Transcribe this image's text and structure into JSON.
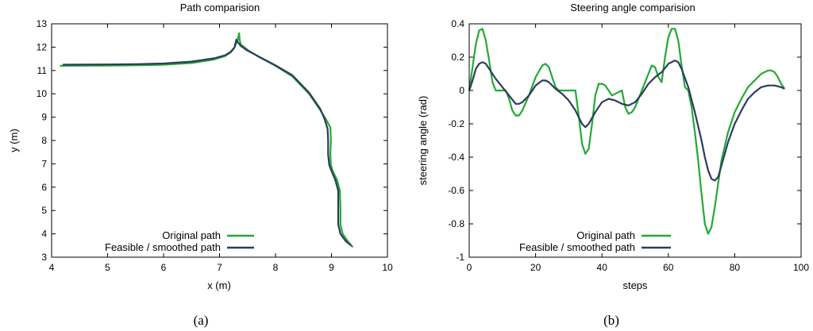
{
  "chart_data": [
    {
      "type": "line",
      "title": "Path comparision",
      "xlabel": "x (m)",
      "ylabel": "y (m)",
      "xlim": [
        4,
        10
      ],
      "ylim": [
        3,
        13
      ],
      "xticks": [
        "4",
        "5",
        "6",
        "7",
        "8",
        "9",
        "10"
      ],
      "yticks": [
        "3",
        "4",
        "5",
        "6",
        "7",
        "8",
        "9",
        "10",
        "11",
        "12",
        "13"
      ],
      "caption": "(a)",
      "legend_position": "bottom-right",
      "series": [
        {
          "name": "Original path",
          "color": "#22aa33",
          "points": [
            [
              4.15,
              11.2
            ],
            [
              5.0,
              11.21
            ],
            [
              5.5,
              11.22
            ],
            [
              6.0,
              11.25
            ],
            [
              6.5,
              11.32
            ],
            [
              6.9,
              11.47
            ],
            [
              7.1,
              11.62
            ],
            [
              7.2,
              11.78
            ],
            [
              7.26,
              11.95
            ],
            [
              7.32,
              12.28
            ],
            [
              7.35,
              12.6
            ],
            [
              7.36,
              12.3
            ],
            [
              7.38,
              12.12
            ],
            [
              7.5,
              11.88
            ],
            [
              7.7,
              11.58
            ],
            [
              8.0,
              11.2
            ],
            [
              8.3,
              10.75
            ],
            [
              8.6,
              10.0
            ],
            [
              8.8,
              9.3
            ],
            [
              8.9,
              8.92
            ],
            [
              8.98,
              8.55
            ],
            [
              8.99,
              8.0
            ],
            [
              8.98,
              7.4
            ],
            [
              8.99,
              6.95
            ],
            [
              9.02,
              6.7
            ],
            [
              9.1,
              6.3
            ],
            [
              9.15,
              5.85
            ],
            [
              9.16,
              5.1
            ],
            [
              9.16,
              4.4
            ],
            [
              9.2,
              4.0
            ],
            [
              9.3,
              3.65
            ],
            [
              9.38,
              3.43
            ]
          ]
        },
        {
          "name": "Feasible / smoothed path",
          "color": "#2d3b5e",
          "points": [
            [
              4.2,
              11.25
            ],
            [
              5.0,
              11.26
            ],
            [
              5.5,
              11.27
            ],
            [
              6.0,
              11.3
            ],
            [
              6.5,
              11.38
            ],
            [
              6.9,
              11.52
            ],
            [
              7.1,
              11.65
            ],
            [
              7.2,
              11.8
            ],
            [
              7.27,
              12.0
            ],
            [
              7.3,
              12.32
            ],
            [
              7.33,
              12.2
            ],
            [
              7.38,
              12.05
            ],
            [
              7.5,
              11.85
            ],
            [
              7.7,
              11.6
            ],
            [
              8.0,
              11.22
            ],
            [
              8.3,
              10.8
            ],
            [
              8.6,
              10.05
            ],
            [
              8.8,
              9.35
            ],
            [
              8.88,
              8.9
            ],
            [
              8.93,
              8.5
            ],
            [
              8.94,
              8.0
            ],
            [
              8.94,
              7.4
            ],
            [
              8.96,
              6.95
            ],
            [
              9.0,
              6.7
            ],
            [
              9.07,
              6.3
            ],
            [
              9.12,
              5.85
            ],
            [
              9.12,
              5.1
            ],
            [
              9.12,
              4.4
            ],
            [
              9.16,
              4.0
            ],
            [
              9.25,
              3.7
            ],
            [
              9.35,
              3.5
            ]
          ]
        }
      ]
    },
    {
      "type": "line",
      "title": "Steering angle comparision",
      "xlabel": "steps",
      "ylabel": "steering angle (rad)",
      "xlim": [
        0,
        100
      ],
      "ylim": [
        -1,
        0.4
      ],
      "xticks": [
        "0",
        "20",
        "40",
        "60",
        "80",
        "100"
      ],
      "yticks": [
        "-1",
        "-0.8",
        "-0.6",
        "-0.4",
        "-0.2",
        "0",
        "0.2",
        "0.4"
      ],
      "caption": "(b)",
      "legend_position": "bottom-right",
      "series": [
        {
          "name": "Original path",
          "color": "#22aa33",
          "points": [
            [
              0,
              0
            ],
            [
              2,
              0.28
            ],
            [
              3,
              0.36
            ],
            [
              4,
              0.37
            ],
            [
              5,
              0.3
            ],
            [
              6,
              0.18
            ],
            [
              7,
              0.05
            ],
            [
              8,
              0
            ],
            [
              10,
              0
            ],
            [
              11,
              0
            ],
            [
              12,
              -0.05
            ],
            [
              13,
              -0.12
            ],
            [
              14,
              -0.15
            ],
            [
              15,
              -0.15
            ],
            [
              16,
              -0.12
            ],
            [
              18,
              -0.03
            ],
            [
              20,
              0.08
            ],
            [
              22,
              0.15
            ],
            [
              23,
              0.16
            ],
            [
              24,
              0.14
            ],
            [
              26,
              0.02
            ],
            [
              27,
              0
            ],
            [
              30,
              0
            ],
            [
              32,
              0
            ],
            [
              33,
              -0.15
            ],
            [
              34,
              -0.32
            ],
            [
              35,
              -0.38
            ],
            [
              36,
              -0.35
            ],
            [
              37,
              -0.2
            ],
            [
              38,
              -0.03
            ],
            [
              39,
              0.04
            ],
            [
              40,
              0.04
            ],
            [
              41,
              0.03
            ],
            [
              42,
              0
            ],
            [
              43,
              -0.03
            ],
            [
              44,
              -0.02
            ],
            [
              46,
              0
            ],
            [
              47,
              -0.1
            ],
            [
              48,
              -0.14
            ],
            [
              49,
              -0.13
            ],
            [
              50,
              -0.1
            ],
            [
              52,
              0
            ],
            [
              54,
              0.1
            ],
            [
              55,
              0.15
            ],
            [
              56,
              0.14
            ],
            [
              57,
              0.08
            ],
            [
              58,
              0.05
            ],
            [
              59,
              0.2
            ],
            [
              60,
              0.32
            ],
            [
              61,
              0.37
            ],
            [
              62,
              0.37
            ],
            [
              63,
              0.3
            ],
            [
              64,
              0.15
            ],
            [
              65,
              0.02
            ],
            [
              66,
              0
            ],
            [
              67,
              -0.1
            ],
            [
              68,
              -0.25
            ],
            [
              69,
              -0.42
            ],
            [
              70,
              -0.62
            ],
            [
              71,
              -0.8
            ],
            [
              72,
              -0.86
            ],
            [
              73,
              -0.82
            ],
            [
              74,
              -0.7
            ],
            [
              75,
              -0.56
            ],
            [
              76,
              -0.42
            ],
            [
              78,
              -0.25
            ],
            [
              80,
              -0.13
            ],
            [
              82,
              -0.05
            ],
            [
              84,
              0.02
            ],
            [
              86,
              0.06
            ],
            [
              88,
              0.1
            ],
            [
              90,
              0.12
            ],
            [
              91,
              0.12
            ],
            [
              92,
              0.11
            ],
            [
              93,
              0.08
            ],
            [
              94,
              0.04
            ],
            [
              95,
              0.01
            ]
          ]
        },
        {
          "name": "Feasible / smoothed path",
          "color": "#2d3b5e",
          "points": [
            [
              0,
              0
            ],
            [
              1,
              0.06
            ],
            [
              2,
              0.13
            ],
            [
              3,
              0.16
            ],
            [
              4,
              0.17
            ],
            [
              5,
              0.16
            ],
            [
              6,
              0.13
            ],
            [
              8,
              0.07
            ],
            [
              10,
              0.02
            ],
            [
              12,
              -0.03
            ],
            [
              14,
              -0.08
            ],
            [
              15,
              -0.08
            ],
            [
              16,
              -0.07
            ],
            [
              18,
              -0.03
            ],
            [
              20,
              0.03
            ],
            [
              22,
              0.06
            ],
            [
              23,
              0.06
            ],
            [
              24,
              0.05
            ],
            [
              26,
              0.01
            ],
            [
              28,
              -0.02
            ],
            [
              30,
              -0.06
            ],
            [
              32,
              -0.12
            ],
            [
              34,
              -0.2
            ],
            [
              35,
              -0.22
            ],
            [
              36,
              -0.2
            ],
            [
              38,
              -0.13
            ],
            [
              40,
              -0.07
            ],
            [
              42,
              -0.05
            ],
            [
              44,
              -0.06
            ],
            [
              46,
              -0.08
            ],
            [
              48,
              -0.09
            ],
            [
              50,
              -0.07
            ],
            [
              52,
              -0.02
            ],
            [
              54,
              0.04
            ],
            [
              56,
              0.08
            ],
            [
              58,
              0.11
            ],
            [
              60,
              0.16
            ],
            [
              62,
              0.18
            ],
            [
              63,
              0.17
            ],
            [
              64,
              0.13
            ],
            [
              66,
              0.02
            ],
            [
              68,
              -0.13
            ],
            [
              70,
              -0.3
            ],
            [
              71,
              -0.4
            ],
            [
              72,
              -0.48
            ],
            [
              73,
              -0.53
            ],
            [
              74,
              -0.54
            ],
            [
              75,
              -0.52
            ],
            [
              76,
              -0.45
            ],
            [
              78,
              -0.31
            ],
            [
              80,
              -0.2
            ],
            [
              82,
              -0.12
            ],
            [
              84,
              -0.05
            ],
            [
              86,
              -0.01
            ],
            [
              88,
              0.02
            ],
            [
              90,
              0.03
            ],
            [
              92,
              0.03
            ],
            [
              94,
              0.02
            ],
            [
              95,
              0.01
            ]
          ]
        }
      ]
    }
  ]
}
